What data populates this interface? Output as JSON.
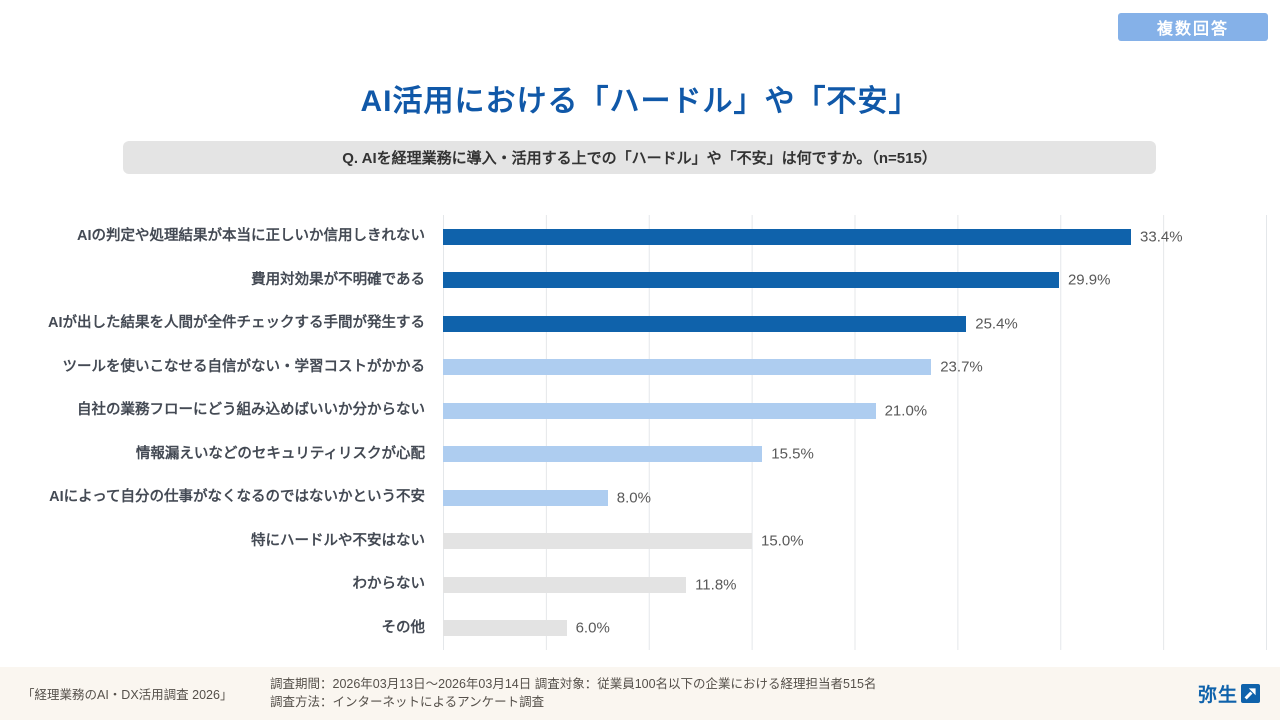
{
  "badge": {
    "label": "複数回答"
  },
  "title": "AI活用における「ハードル」や「不安」",
  "question": "Q. AIを経理業務に導入・活用する上での「ハードル」や「不安」は何ですか。（n=515）",
  "chart_data": {
    "type": "bar",
    "orientation": "horizontal",
    "unit": "%",
    "xlim": [
      0,
      40
    ],
    "gridline_step": 5,
    "grid": "vertical-lines-only, no tick labels",
    "legend": "none",
    "categories": [
      "AIの判定や処理結果が本当に正しいか信用しきれない",
      "費用対効果が不明確である",
      "AIが出した結果を人間が全件チェックする手間が発生する",
      "ツールを使いこなせる自信がない・学習コストがかかる",
      "自社の業務フローにどう組み込めばいいか分からない",
      "情報漏えいなどのセキュリティリスクが心配",
      "AIによって自分の仕事がなくなるのではないかという不安",
      "特にハードルや不安はない",
      "わからない",
      "その他"
    ],
    "values": [
      33.4,
      29.9,
      25.4,
      23.7,
      21.0,
      15.5,
      8.0,
      15.0,
      11.8,
      6.0
    ],
    "tones": [
      "dark",
      "dark",
      "dark",
      "light",
      "light",
      "light",
      "light",
      "gray",
      "gray",
      "gray"
    ],
    "colors": {
      "dark": "#0f62ab",
      "light": "#aecdf0",
      "gray": "#e3e3e3"
    }
  },
  "footer": {
    "source": "「経理業務のAI・DX活用調査 2026」",
    "detail_line1": "調査期間：2026年03月13日～2026年03月14日 調査対象：従業員100名以下の企業における経理担当者515名",
    "detail_line2": "調査方法：インターネットによるアンケート調査",
    "logo_text": "弥生",
    "logo_color": "#0f62ab"
  }
}
